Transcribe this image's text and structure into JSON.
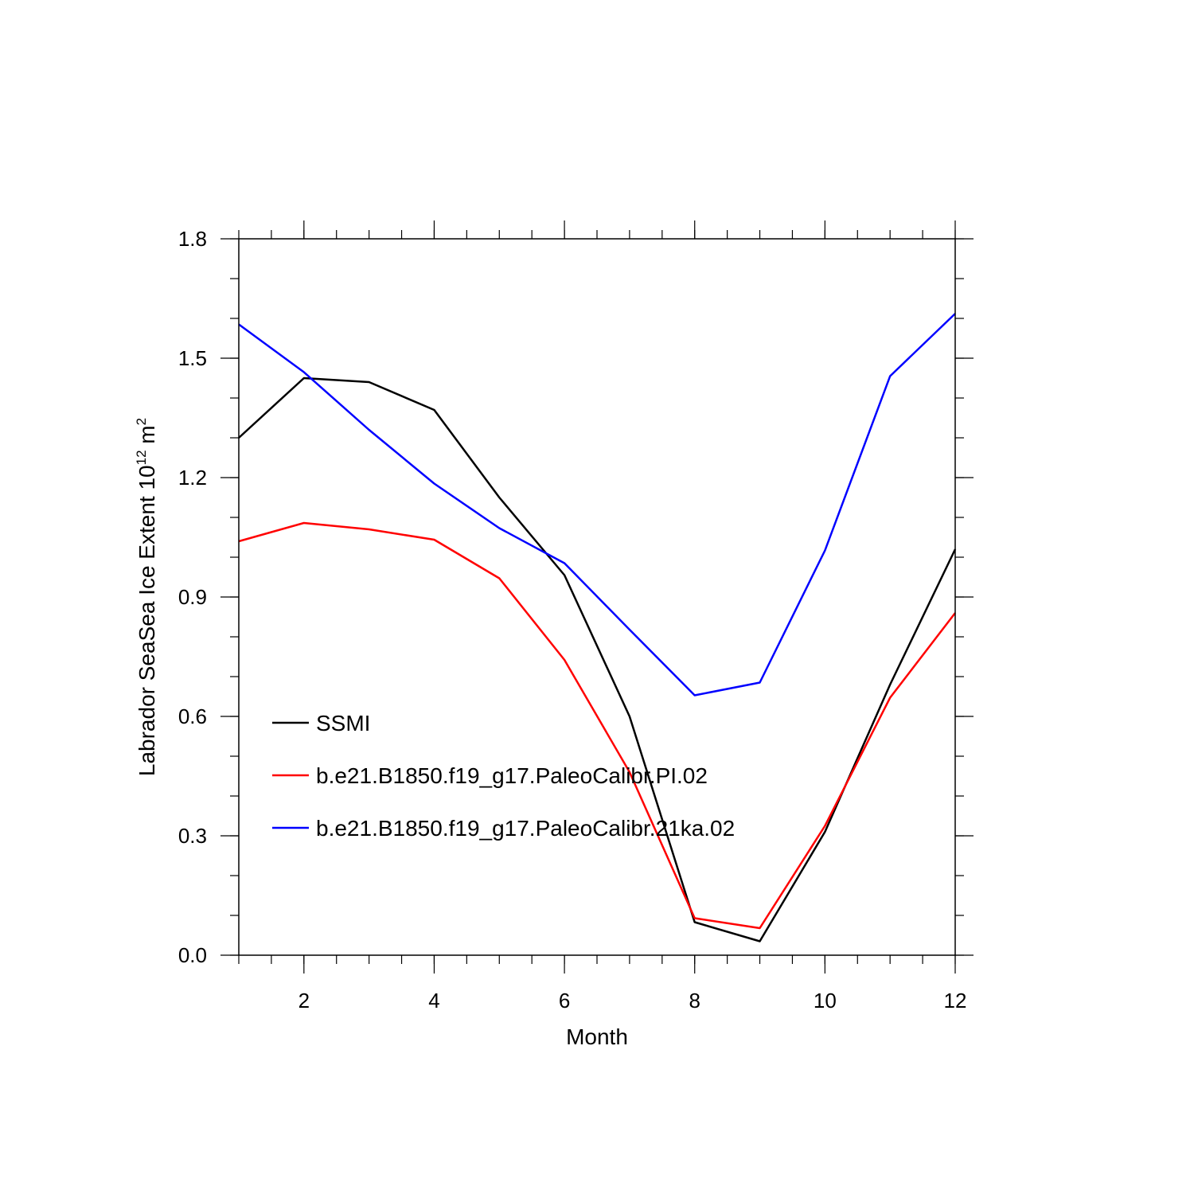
{
  "chart_data": {
    "type": "line",
    "xlabel": "Month",
    "ylabel_text": "Labrador SeaSea Ice Extent 10",
    "ylabel_superscript_1": "12",
    "ylabel_unit": " m",
    "ylabel_superscript_2": "2",
    "xlim": [
      1,
      12
    ],
    "ylim": [
      0.0,
      1.8
    ],
    "x_ticks": [
      2,
      4,
      6,
      8,
      10,
      12
    ],
    "x_tick_labels": [
      "2",
      "4",
      "6",
      "8",
      "10",
      "12"
    ],
    "y_ticks": [
      0.0,
      0.3,
      0.6,
      0.9,
      1.2,
      1.5,
      1.8
    ],
    "y_tick_labels": [
      "0.0",
      "0.3",
      "0.6",
      "0.9",
      "1.2",
      "1.5",
      "1.8"
    ],
    "grid": false,
    "legend_position": "lower-left",
    "x": [
      1,
      2,
      3,
      4,
      5,
      6,
      7,
      8,
      9,
      10,
      11,
      12
    ],
    "series": [
      {
        "name": "SSMI",
        "color": "#000000",
        "values": [
          1.3,
          1.45,
          1.44,
          1.37,
          1.15,
          0.955,
          0.6,
          0.083,
          0.035,
          0.31,
          0.68,
          1.02
        ]
      },
      {
        "name": "b.e21.B1850.f19_g17.PaleoCalibr.PI.02",
        "color": "#ff0000",
        "values": [
          1.04,
          1.086,
          1.07,
          1.044,
          0.947,
          0.742,
          0.46,
          0.093,
          0.068,
          0.325,
          0.647,
          0.86
        ]
      },
      {
        "name": "b.e21.B1850.f19_g17.PaleoCalibr.21ka.02",
        "color": "#0000ff",
        "values": [
          1.585,
          1.465,
          1.32,
          1.185,
          1.073,
          0.985,
          0.818,
          0.653,
          0.685,
          1.017,
          1.455,
          1.612
        ]
      }
    ]
  }
}
